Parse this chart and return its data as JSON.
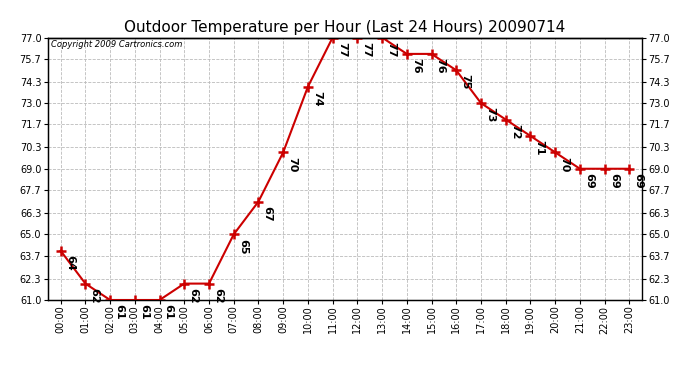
{
  "title": "Outdoor Temperature per Hour (Last 24 Hours) 20090714",
  "copyright_text": "Copyright 2009 Cartronics.com",
  "hours": [
    "00:00",
    "01:00",
    "02:00",
    "03:00",
    "04:00",
    "05:00",
    "06:00",
    "07:00",
    "08:00",
    "09:00",
    "10:00",
    "11:00",
    "12:00",
    "13:00",
    "14:00",
    "15:00",
    "16:00",
    "17:00",
    "18:00",
    "19:00",
    "20:00",
    "21:00",
    "22:00",
    "23:00"
  ],
  "temperatures": [
    64,
    62,
    61,
    61,
    61,
    62,
    62,
    65,
    67,
    70,
    74,
    77,
    77,
    77,
    76,
    76,
    75,
    73,
    72,
    71,
    70,
    69,
    69,
    69
  ],
  "line_color": "#CC0000",
  "marker": "+",
  "marker_size": 7,
  "marker_color": "#CC0000",
  "ylim_min": 61.0,
  "ylim_max": 77.0,
  "yticks": [
    61.0,
    62.3,
    63.7,
    65.0,
    66.3,
    67.7,
    69.0,
    70.3,
    71.7,
    73.0,
    74.3,
    75.7,
    77.0
  ],
  "background_color": "#ffffff",
  "grid_color": "#bbbbbb",
  "title_fontsize": 11,
  "label_fontsize": 7,
  "annotation_fontsize": 8,
  "copyright_fontsize": 6
}
